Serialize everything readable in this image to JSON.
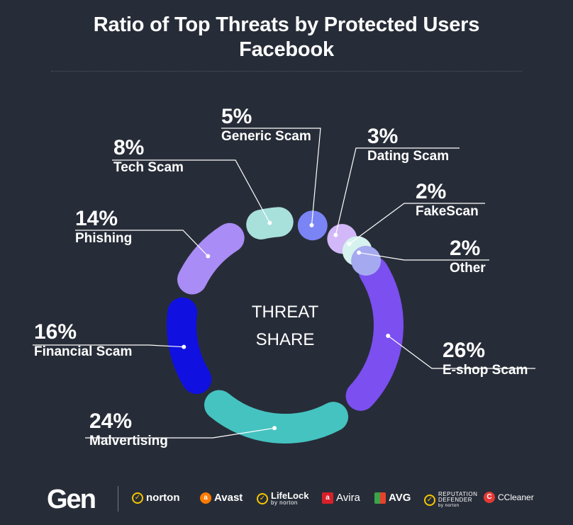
{
  "title_line1": "Ratio of Top Threats by Protected Users",
  "title_line2": "Facebook",
  "chart_data": {
    "type": "pie",
    "center_label_line1": "THREAT",
    "center_label_line2": "SHARE",
    "slices": [
      {
        "label": "E-shop Scam",
        "value": 26,
        "pct": "26%",
        "color": "#7b4ff0"
      },
      {
        "label": "Malvertising",
        "value": 24,
        "pct": "24%",
        "color": "#45c3c0"
      },
      {
        "label": "Financial Scam",
        "value": 16,
        "pct": "16%",
        "color": "#1010e0"
      },
      {
        "label": "Phishing",
        "value": 14,
        "pct": "14%",
        "color": "#a98cf5"
      },
      {
        "label": "Tech Scam",
        "value": 8,
        "pct": "8%",
        "color": "#a8e0dc"
      },
      {
        "label": "Generic Scam",
        "value": 5,
        "pct": "5%",
        "color": "#7b84f4"
      },
      {
        "label": "Dating Scam",
        "value": 3,
        "pct": "3%",
        "color": "#d2b8f8"
      },
      {
        "label": "FakeScan",
        "value": 2,
        "pct": "2%",
        "color": "#d6f2ee"
      },
      {
        "label": "Other",
        "value": 2,
        "pct": "2%",
        "color": "#a5a9ef"
      }
    ]
  },
  "footer": {
    "logo": "Gen",
    "brands": [
      {
        "name": "norton",
        "icon": "check-circle-icon",
        "color": "#f7c600"
      },
      {
        "name": "Avast",
        "icon": "avast-icon",
        "color": "#ff7a00"
      },
      {
        "name": "LifeLock",
        "sub": "by norton",
        "icon": "check-circle-icon",
        "color": "#f7c600"
      },
      {
        "name": "Avira",
        "icon": "avira-icon",
        "color": "#d8202a"
      },
      {
        "name": "AVG",
        "icon": "avg-icon",
        "color": "#3ba34a"
      },
      {
        "name": "REPUTATION DEFENDER",
        "sub": "by norton",
        "icon": "check-circle-icon",
        "color": "#f7c600"
      },
      {
        "name": "CCleaner",
        "icon": "ccleaner-icon",
        "color": "#e53935"
      }
    ]
  }
}
